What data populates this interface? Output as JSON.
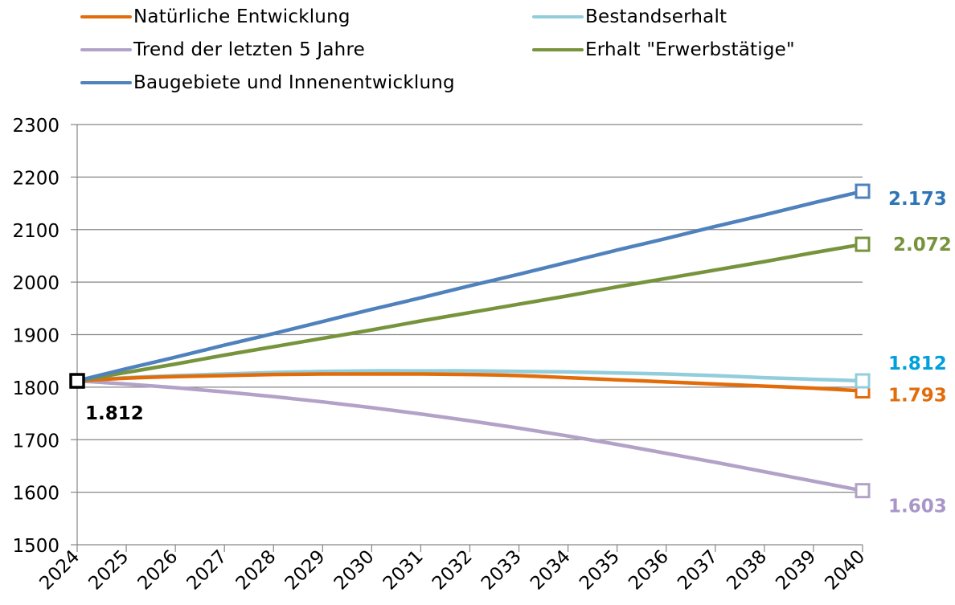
{
  "chart_data": {
    "type": "line",
    "x": [
      2024,
      2025,
      2026,
      2027,
      2028,
      2029,
      2030,
      2031,
      2032,
      2033,
      2034,
      2035,
      2036,
      2037,
      2038,
      2039,
      2040
    ],
    "ylim": [
      1500,
      2300
    ],
    "yticks": [
      1500,
      1600,
      1700,
      1800,
      1900,
      2000,
      2100,
      2200,
      2300
    ],
    "grid": true,
    "legend_position": "top",
    "series": [
      {
        "name": "Natürliche Entwicklung",
        "color": "#E36C0A",
        "values": [
          1812,
          1817,
          1820,
          1822,
          1824,
          1825,
          1825,
          1825,
          1824,
          1822,
          1818,
          1814,
          1810,
          1806,
          1802,
          1798,
          1793
        ],
        "end_label": "1.793",
        "end_label_color": "#E36C0A"
      },
      {
        "name": "Bestandserhalt",
        "color": "#92CDDC",
        "values": [
          1812,
          1818,
          1822,
          1825,
          1828,
          1830,
          1831,
          1831,
          1831,
          1830,
          1829,
          1827,
          1825,
          1822,
          1818,
          1815,
          1812
        ],
        "end_label": "1.812",
        "end_label_color": "#00A0DC"
      },
      {
        "name": "Trend der letzten 5 Jahre",
        "color": "#B3A2C7",
        "values": [
          1812,
          1806,
          1799,
          1791,
          1782,
          1772,
          1761,
          1749,
          1736,
          1722,
          1707,
          1691,
          1674,
          1657,
          1639,
          1621,
          1603
        ],
        "end_label": "1.603",
        "end_label_color": "#A896C8"
      },
      {
        "name": "Erhalt \"Erwerbstätige\"",
        "color": "#77933C",
        "values": [
          1812,
          1828,
          1844,
          1861,
          1877,
          1893,
          1909,
          1926,
          1942,
          1958,
          1974,
          1991,
          2007,
          2023,
          2039,
          2056,
          2072
        ],
        "end_label": "2.072",
        "end_label_color": "#77933C"
      },
      {
        "name": "Baugebiete und Innenentwicklung",
        "color": "#4F81BD",
        "values": [
          1812,
          1835,
          1857,
          1880,
          1902,
          1925,
          1948,
          1970,
          1993,
          2015,
          2038,
          2061,
          2083,
          2106,
          2128,
          2151,
          2173
        ],
        "end_label": "2.173",
        "end_label_color": "#2E75B6"
      }
    ],
    "start_label": "1.812",
    "start_label_color": "#000000"
  }
}
